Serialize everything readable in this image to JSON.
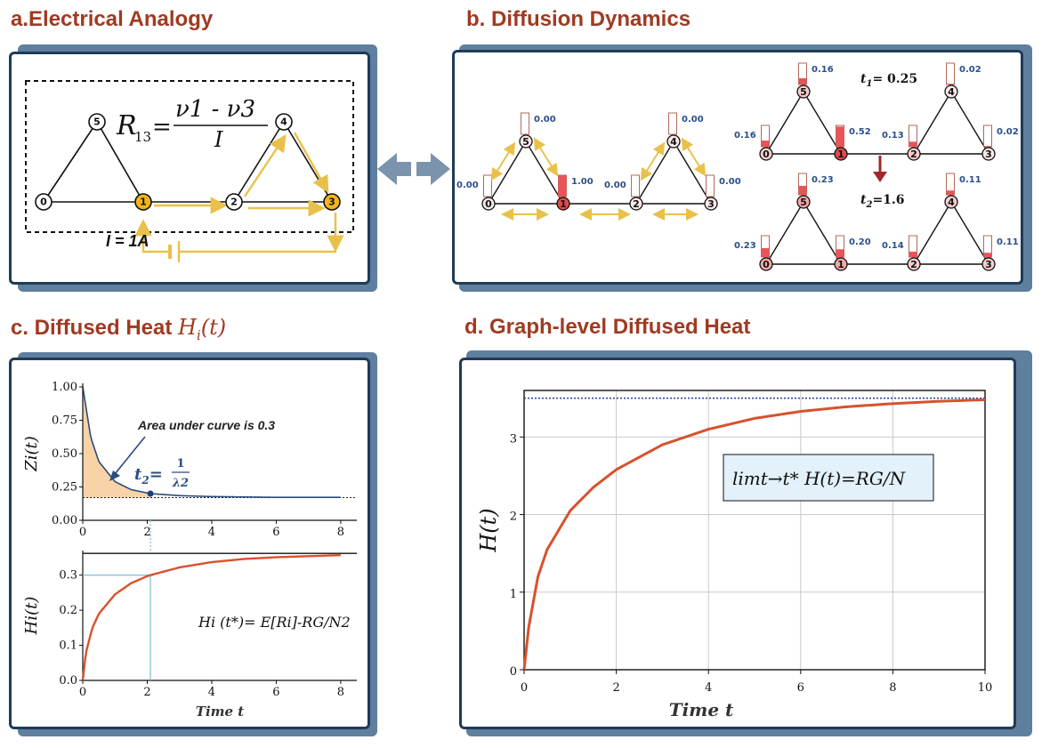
{
  "panels": {
    "a": {
      "title": "a.Electrical Analogy"
    },
    "b": {
      "title": "b. Diffusion Dynamics"
    },
    "c": {
      "title_prefix": "c. Diffused Heat ",
      "title_math": "Hi(t)"
    },
    "d": {
      "title": "d. Graph-level Diffused Heat"
    }
  },
  "panel_a": {
    "formula_lhs": "R",
    "formula_lhs_sub": "13",
    "formula_eq": "=",
    "formula_num": "ν1 - ν3",
    "formula_den": "I",
    "current_label": "I = 1A",
    "nodes": [
      "0",
      "1",
      "2",
      "3",
      "4",
      "5"
    ],
    "highlight_color": "#f2b41c",
    "arrow_color": "#e9c14a"
  },
  "panel_b": {
    "left_graph": {
      "nodes": [
        "0",
        "1",
        "2",
        "3",
        "4",
        "5"
      ],
      "values": {
        "n0": "0.00",
        "n1": "1.00",
        "n2": "0.00",
        "n3": "0.00",
        "n4": "0.00",
        "n5": "0.00"
      }
    },
    "t1_label": "t",
    "t1_sub": "1",
    "t1_value": "= 0.25",
    "t1_values": {
      "n0": "0.16",
      "n1": "0.52",
      "n2": "0.13",
      "n3": "0.02",
      "n4": "0.02",
      "n5": "0.16"
    },
    "t2_label": "t",
    "t2_sub": "2",
    "t2_value": "=1.6",
    "t2_values": {
      "n0": "0.23",
      "n1": "0.20",
      "n2": "0.14",
      "n3": "0.11",
      "n4": "0.11",
      "n5": "0.23"
    },
    "heat_color": "#e8545a"
  },
  "panel_c": {
    "top": {
      "ylabel": "Zi(t)",
      "yticks": [
        "1.00",
        "0.75",
        "0.50",
        "0.25",
        "0.00"
      ],
      "xticks": [
        "0",
        "2",
        "4",
        "6",
        "8"
      ],
      "annotation": "Area under curve is 0.3",
      "t2_text": "t",
      "t2_sub": "2",
      "t2_eq": "=",
      "t2_num": "1",
      "t2_den": "λ2"
    },
    "bottom": {
      "ylabel": "Hi(t)",
      "yticks": [
        "0.3",
        "0.2",
        "0.1",
        "0.0"
      ],
      "xticks": [
        "0",
        "2",
        "4",
        "6",
        "8"
      ],
      "xlabel": "Time t",
      "formula": "Hi (t*)= E[Ri]-RG/N2"
    }
  },
  "panel_d": {
    "ylabel": "H(t)",
    "xlabel": "Time t",
    "yticks": [
      "3",
      "2",
      "1",
      "0"
    ],
    "xticks": [
      "0",
      "2",
      "4",
      "6",
      "8",
      "10"
    ],
    "formula": "limt→t* H(t)=RG/N"
  },
  "chart_data": [
    {
      "type": "area",
      "title": "",
      "xlabel": "",
      "ylabel": "Zi(t)",
      "xlim": [
        0,
        8.5
      ],
      "ylim": [
        0,
        1.0
      ],
      "x": [
        0,
        0.25,
        0.5,
        1,
        1.5,
        2,
        2.1,
        3,
        4,
        5,
        6,
        7,
        8
      ],
      "series": [
        {
          "values": [
            1.0,
            0.62,
            0.44,
            0.29,
            0.23,
            0.205,
            0.2,
            0.185,
            0.178,
            0.175,
            0.172,
            0.172,
            0.172
          ]
        }
      ],
      "asymptote": 0.17,
      "marker_x": 2.1
    },
    {
      "type": "line",
      "title": "",
      "xlabel": "Time t",
      "ylabel": "Hi(t)",
      "xlim": [
        0,
        8.5
      ],
      "ylim": [
        0,
        0.37
      ],
      "x": [
        0,
        0.1,
        0.3,
        0.5,
        1,
        1.5,
        2,
        2.1,
        3,
        4,
        5,
        6,
        7,
        8
      ],
      "series": [
        {
          "values": [
            0.0,
            0.08,
            0.15,
            0.19,
            0.245,
            0.277,
            0.297,
            0.3,
            0.322,
            0.337,
            0.346,
            0.351,
            0.354,
            0.357
          ]
        }
      ],
      "asymptote": 0.362,
      "marker_y": 0.3
    },
    {
      "type": "line",
      "title": "",
      "xlabel": "Time t",
      "ylabel": "H(t)",
      "xlim": [
        0,
        10
      ],
      "ylim": [
        0,
        3.6
      ],
      "x": [
        0,
        0.1,
        0.3,
        0.5,
        1,
        1.5,
        2,
        3,
        4,
        5,
        6,
        7,
        8,
        9,
        10
      ],
      "series": [
        {
          "values": [
            0.0,
            0.55,
            1.2,
            1.55,
            2.05,
            2.35,
            2.58,
            2.9,
            3.1,
            3.24,
            3.33,
            3.39,
            3.43,
            3.46,
            3.48
          ]
        }
      ],
      "asymptote": 3.5
    }
  ]
}
